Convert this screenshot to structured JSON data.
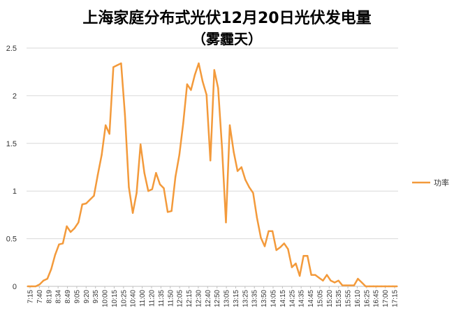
{
  "chart_data": {
    "type": "line",
    "title": "上海家庭分布式光伏12月20日光伏发电量",
    "subtitle": "（雾霾天）",
    "xlabel": "",
    "ylabel": "",
    "ylim": [
      0,
      2.5
    ],
    "yticks": [
      "0",
      "0.5",
      "1",
      "1.5",
      "2",
      "2.5"
    ],
    "grid": true,
    "legend_position": "right",
    "color": "#f39a3b",
    "tick_labels": [
      "7:15",
      "7:40",
      "8:19",
      "8:34",
      "8:49",
      "9:05",
      "9:20",
      "9:35",
      "10:00",
      "10:15",
      "10:25",
      "10:40",
      "11:00",
      "11:20",
      "11:35",
      "11:50",
      "12:05",
      "12:15",
      "12:30",
      "12:40",
      "12:50",
      "13:05",
      "13:15",
      "13:25",
      "13:35",
      "13:50",
      "14:05",
      "14:15",
      "14:25",
      "14:35",
      "14:45",
      "15:05",
      "15:20",
      "15:35",
      "15:55",
      "16:10",
      "16:25",
      "16:45",
      "17:00",
      "17:15"
    ],
    "series": [
      {
        "name": "功率",
        "values": [
          0.0,
          0.0,
          0.0,
          0.02,
          0.06,
          0.08,
          0.18,
          0.33,
          0.44,
          0.45,
          0.63,
          0.57,
          0.61,
          0.67,
          0.86,
          0.87,
          0.91,
          0.95,
          1.17,
          1.38,
          1.69,
          1.6,
          2.3,
          2.32,
          2.34,
          1.8,
          1.04,
          0.77,
          0.98,
          1.49,
          1.19,
          1.0,
          1.02,
          1.19,
          1.07,
          1.03,
          0.78,
          0.79,
          1.15,
          1.38,
          1.71,
          2.12,
          2.06,
          2.22,
          2.34,
          2.15,
          2.01,
          1.32,
          2.27,
          2.08,
          1.45,
          0.67,
          1.69,
          1.41,
          1.21,
          1.25,
          1.12,
          1.04,
          0.98,
          0.72,
          0.51,
          0.42,
          0.58,
          0.58,
          0.38,
          0.41,
          0.45,
          0.39,
          0.2,
          0.24,
          0.11,
          0.32,
          0.32,
          0.12,
          0.12,
          0.09,
          0.06,
          0.12,
          0.06,
          0.04,
          0.06,
          0.01,
          0.01,
          0.01,
          0.01,
          0.08,
          0.04,
          0.0,
          0.0,
          0.0,
          0.0,
          0.0,
          0.0,
          0.0,
          0.0,
          0.0
        ]
      }
    ]
  }
}
